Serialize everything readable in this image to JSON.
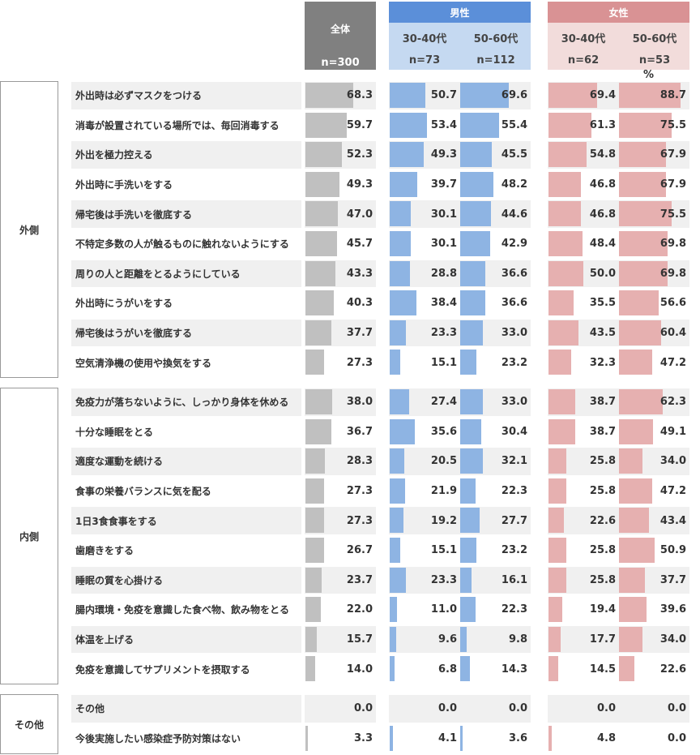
{
  "headers": {
    "total": {
      "title": "全体",
      "n": "n=300"
    },
    "male": {
      "title": "男性",
      "cols": [
        {
          "age": "30-40代",
          "n": "n=73"
        },
        {
          "age": "50-60代",
          "n": "n=112"
        }
      ]
    },
    "female": {
      "title": "女性",
      "cols": [
        {
          "age": "30-40代",
          "n": "n=62"
        },
        {
          "age": "50-60代",
          "n": "n=53"
        }
      ]
    },
    "unit": "%"
  },
  "colors": {
    "total_bar": "#c0c0c0",
    "total_header": "#808080",
    "male_bar": "#8eb4e3",
    "male_header": "#5b8fd9",
    "male_sub": "#c5d9f1",
    "female_bar": "#e6b0b0",
    "female_header": "#d99294",
    "female_sub": "#f2dcdb"
  },
  "chart_data": {
    "type": "bar",
    "series": [
      {
        "name": "全体 n=300"
      },
      {
        "name": "男性 30-40代 n=73"
      },
      {
        "name": "男性 50-60代 n=112"
      },
      {
        "name": "女性 30-40代 n=62"
      },
      {
        "name": "女性 50-60代 n=53"
      }
    ],
    "groups": [
      {
        "name": "外側",
        "items": [
          {
            "label": "外出時は必ずマスクをつける",
            "values": [
              "68.3",
              "50.7",
              "69.6",
              "69.4",
              "88.7"
            ]
          },
          {
            "label": "消毒が設置されている場所では、毎回消毒する",
            "values": [
              "59.7",
              "53.4",
              "55.4",
              "61.3",
              "75.5"
            ]
          },
          {
            "label": "外出を極力控える",
            "values": [
              "52.3",
              "49.3",
              "45.5",
              "54.8",
              "67.9"
            ]
          },
          {
            "label": "外出時に手洗いをする",
            "values": [
              "49.3",
              "39.7",
              "48.2",
              "46.8",
              "67.9"
            ]
          },
          {
            "label": "帰宅後は手洗いを徹底する",
            "values": [
              "47.0",
              "30.1",
              "44.6",
              "46.8",
              "75.5"
            ]
          },
          {
            "label": "不特定多数の人が触るものに触れないようにする",
            "values": [
              "45.7",
              "30.1",
              "42.9",
              "48.4",
              "69.8"
            ]
          },
          {
            "label": "周りの人と距離をとるようにしている",
            "values": [
              "43.3",
              "28.8",
              "36.6",
              "50.0",
              "69.8"
            ]
          },
          {
            "label": "外出時にうがいをする",
            "values": [
              "40.3",
              "38.4",
              "36.6",
              "35.5",
              "56.6"
            ]
          },
          {
            "label": "帰宅後はうがいを徹底する",
            "values": [
              "37.7",
              "23.3",
              "33.0",
              "43.5",
              "60.4"
            ]
          },
          {
            "label": "空気清浄機の使用や換気をする",
            "values": [
              "27.3",
              "15.1",
              "23.2",
              "32.3",
              "47.2"
            ]
          }
        ]
      },
      {
        "name": "内側",
        "items": [
          {
            "label": "免疫力が落ちないように、しっかり身体を休める",
            "values": [
              "38.0",
              "27.4",
              "33.0",
              "38.7",
              "62.3"
            ]
          },
          {
            "label": "十分な睡眠をとる",
            "values": [
              "36.7",
              "35.6",
              "30.4",
              "38.7",
              "49.1"
            ]
          },
          {
            "label": "適度な運動を続ける",
            "values": [
              "28.3",
              "20.5",
              "32.1",
              "25.8",
              "34.0"
            ]
          },
          {
            "label": "食事の栄養バランスに気を配る",
            "values": [
              "27.3",
              "21.9",
              "22.3",
              "25.8",
              "47.2"
            ]
          },
          {
            "label": "1日3食食事をする",
            "values": [
              "27.3",
              "19.2",
              "27.7",
              "22.6",
              "43.4"
            ]
          },
          {
            "label": "歯磨きをする",
            "values": [
              "26.7",
              "15.1",
              "23.2",
              "25.8",
              "50.9"
            ]
          },
          {
            "label": "睡眠の質を心掛ける",
            "values": [
              "23.7",
              "23.3",
              "16.1",
              "25.8",
              "37.7"
            ]
          },
          {
            "label": "腸内環境・免疫を意識した食べ物、飲み物をとる",
            "values": [
              "22.0",
              "11.0",
              "22.3",
              "19.4",
              "39.6"
            ]
          },
          {
            "label": "体温を上げる",
            "values": [
              "15.7",
              "9.6",
              "9.8",
              "17.7",
              "34.0"
            ]
          },
          {
            "label": "免疫を意識してサプリメントを摂取する",
            "values": [
              "14.0",
              "6.8",
              "14.3",
              "14.5",
              "22.6"
            ]
          }
        ]
      },
      {
        "name": "その他",
        "items": [
          {
            "label": "その他",
            "values": [
              "0.0",
              "0.0",
              "0.0",
              "0.0",
              "0.0"
            ]
          },
          {
            "label": "今後実施したい感染症予防対策はない",
            "values": [
              "3.3",
              "4.1",
              "3.6",
              "4.8",
              "0.0"
            ]
          }
        ]
      }
    ]
  }
}
